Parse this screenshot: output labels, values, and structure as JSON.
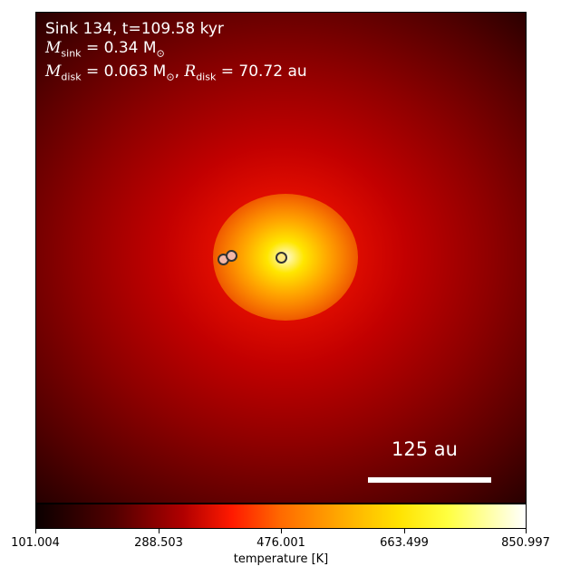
{
  "annotation": {
    "line1": "Sink 134, t=109.58 kyr",
    "msink_symbol": "M",
    "msink_sub": "sink",
    "msink_value": " = 0.34 M",
    "sun_symbol": "⊙",
    "mdisk_symbol": "M",
    "mdisk_sub": "disk",
    "mdisk_value": " = 0.063 M",
    "rdisk_prefix": ", ",
    "rdisk_symbol": "R",
    "rdisk_sub": "disk",
    "rdisk_value": " = 70.72 au"
  },
  "scale_bar": {
    "label": "125 au"
  },
  "colorbar": {
    "label": "temperature [K]",
    "ticks": [
      "101.004",
      "288.503",
      "476.001",
      "663.499",
      "850.997"
    ]
  }
}
